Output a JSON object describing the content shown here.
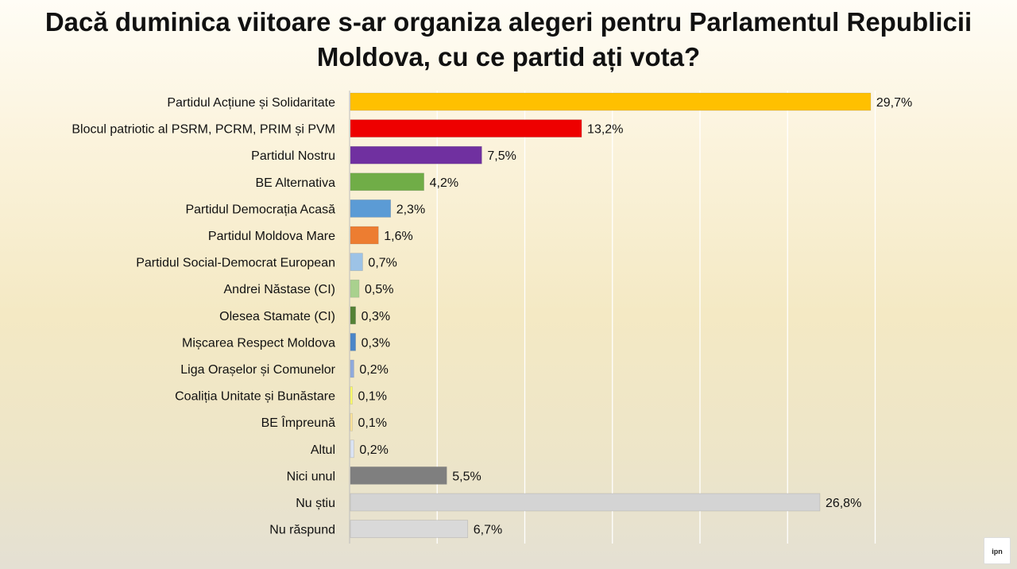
{
  "chart_data": {
    "type": "bar",
    "orientation": "horizontal",
    "title_line1": "Dacă duminica viitoare s-ar organiza alegeri pentru Parlamentul Republicii",
    "title_line2": "Moldova, cu ce partid ați vota?",
    "xlim": [
      0,
      30
    ],
    "grid": true,
    "legend": "none",
    "categories": [
      "Partidul Acțiune și Solidaritate",
      "Blocul patriotic al PSRM, PCRM, PRIM și PVM",
      "Partidul Nostru",
      "BE Alternativa",
      "Partidul Democrația Acasă",
      "Partidul Moldova Mare",
      "Partidul Social-Democrat European",
      "Andrei Năstase (CI)",
      "Olesea Stamate (CI)",
      "Mișcarea Respect Moldova",
      "Liga Orașelor și Comunelor",
      "Coaliția Unitate și Bunăstare",
      "BE Împreună",
      "Altul",
      "Nici unul",
      "Nu știu",
      "Nu răspund"
    ],
    "values": [
      29.7,
      13.2,
      7.5,
      4.2,
      2.3,
      1.6,
      0.7,
      0.5,
      0.3,
      0.3,
      0.2,
      0.1,
      0.1,
      0.2,
      5.5,
      26.8,
      6.7
    ],
    "labels": [
      "29,7%",
      "13,2%",
      "7,5%",
      "4,2%",
      "2,3%",
      "1,6%",
      "0,7%",
      "0,5%",
      "0,3%",
      "0,3%",
      "0,2%",
      "0,1%",
      "0,1%",
      "0,2%",
      "5,5%",
      "26,8%",
      "6,7%"
    ],
    "colors": [
      "#ffc000",
      "#ee0000",
      "#7030a0",
      "#70ad47",
      "#5b9bd5",
      "#ed7d31",
      "#9dc3e6",
      "#a9d18e",
      "#548235",
      "#4a86c8",
      "#8faadc",
      "#ffff66",
      "#ffe699",
      "#dae3f3",
      "#7f7f7f",
      "#d4d4d4",
      "#d9d9d9"
    ]
  },
  "logo_text": "ipn"
}
